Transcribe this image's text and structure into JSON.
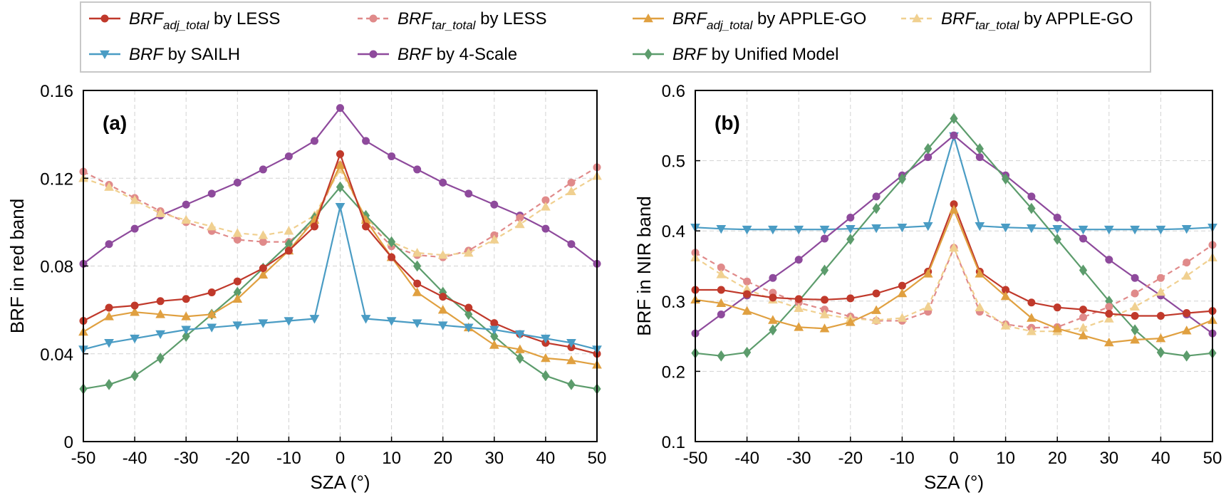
{
  "legend": [
    {
      "key": "less_adj",
      "name": "BRF",
      "sub": "adj_total",
      "suffix": " by LESS"
    },
    {
      "key": "less_tar",
      "name": "BRF",
      "sub": "tar_total",
      "suffix": " by LESS"
    },
    {
      "key": "apple_adj",
      "name": "BRF",
      "sub": "adj_total",
      "suffix": " by APPLE-GO"
    },
    {
      "key": "apple_tar",
      "name": "BRF",
      "sub": "tar_total",
      "suffix": " by APPLE-GO"
    },
    {
      "key": "sailh",
      "name": "BRF",
      "sub": "",
      "suffix": " by SAILH"
    },
    {
      "key": "fourscale",
      "name": "BRF",
      "sub": "",
      "suffix": " by 4-Scale"
    },
    {
      "key": "unified",
      "name": "BRF",
      "sub": "",
      "suffix": " by Unified Model"
    }
  ],
  "styles": {
    "less_adj": {
      "color": "#c0392b",
      "marker": "circle",
      "dash": false,
      "opacity": 1
    },
    "less_tar": {
      "color": "#e08a8a",
      "marker": "circle",
      "dash": true,
      "opacity": 1
    },
    "apple_adj": {
      "color": "#e0a040",
      "marker": "triangle",
      "dash": false,
      "opacity": 1
    },
    "apple_tar": {
      "color": "#f0d090",
      "marker": "triangle",
      "dash": true,
      "opacity": 1
    },
    "sailh": {
      "color": "#4a9cc4",
      "marker": "triangle-down",
      "dash": false,
      "opacity": 1
    },
    "fourscale": {
      "color": "#8e4a9c",
      "marker": "circle",
      "dash": false,
      "opacity": 1
    },
    "unified": {
      "color": "#5c9c6c",
      "marker": "diamond",
      "dash": false,
      "opacity": 1
    }
  },
  "chart_data": [
    {
      "type": "line",
      "panel_label": "(a)",
      "xlabel": "SZA (°)",
      "ylabel": "BRF in red band",
      "xlim": [
        -50,
        50
      ],
      "ylim": [
        0,
        0.16
      ],
      "xticks": [
        -50,
        -40,
        -30,
        -20,
        -10,
        0,
        10,
        20,
        30,
        40,
        50
      ],
      "yticks": [
        0,
        0.04,
        0.08,
        0.12,
        0.16
      ],
      "ytick_labels": [
        "0",
        "0.04",
        "0.08",
        "0.12",
        "0.16"
      ],
      "grid": true,
      "x": [
        -50,
        -45,
        -40,
        -35,
        -30,
        -25,
        -20,
        -15,
        -10,
        -5,
        0,
        5,
        10,
        15,
        20,
        25,
        30,
        35,
        40,
        45,
        50
      ],
      "series": [
        {
          "key": "fourscale",
          "values": [
            0.081,
            0.09,
            0.097,
            0.103,
            0.108,
            0.113,
            0.118,
            0.124,
            0.13,
            0.137,
            0.152,
            0.137,
            0.13,
            0.124,
            0.118,
            0.113,
            0.108,
            0.103,
            0.097,
            0.09,
            0.081
          ]
        },
        {
          "key": "less_tar",
          "values": [
            0.123,
            0.117,
            0.111,
            0.105,
            0.1,
            0.096,
            0.092,
            0.091,
            0.091,
            0.1,
            0.126,
            0.101,
            0.089,
            0.085,
            0.084,
            0.087,
            0.094,
            0.102,
            0.11,
            0.118,
            0.125
          ]
        },
        {
          "key": "apple_tar",
          "values": [
            0.12,
            0.116,
            0.11,
            0.104,
            0.101,
            0.098,
            0.095,
            0.094,
            0.096,
            0.103,
            0.124,
            0.102,
            0.091,
            0.086,
            0.085,
            0.086,
            0.092,
            0.099,
            0.107,
            0.114,
            0.121
          ]
        },
        {
          "key": "unified",
          "values": [
            0.024,
            0.026,
            0.03,
            0.038,
            0.048,
            0.058,
            0.068,
            0.079,
            0.09,
            0.102,
            0.116,
            0.103,
            0.091,
            0.08,
            0.068,
            0.058,
            0.048,
            0.038,
            0.03,
            0.026,
            0.024
          ]
        },
        {
          "key": "apple_adj",
          "values": [
            0.05,
            0.057,
            0.059,
            0.058,
            0.057,
            0.058,
            0.065,
            0.076,
            0.087,
            0.101,
            0.126,
            0.101,
            0.084,
            0.068,
            0.06,
            0.052,
            0.044,
            0.042,
            0.038,
            0.037,
            0.035
          ]
        },
        {
          "key": "less_adj",
          "values": [
            0.055,
            0.061,
            0.062,
            0.064,
            0.065,
            0.068,
            0.073,
            0.079,
            0.087,
            0.098,
            0.131,
            0.098,
            0.084,
            0.072,
            0.066,
            0.061,
            0.054,
            0.049,
            0.045,
            0.043,
            0.04
          ]
        },
        {
          "key": "sailh",
          "values": [
            0.042,
            0.045,
            0.047,
            0.049,
            0.051,
            0.052,
            0.053,
            0.054,
            0.055,
            0.056,
            0.107,
            0.056,
            0.055,
            0.054,
            0.053,
            0.052,
            0.051,
            0.049,
            0.047,
            0.045,
            0.042
          ]
        }
      ]
    },
    {
      "type": "line",
      "panel_label": "(b)",
      "xlabel": "SZA (°)",
      "ylabel": "BRF in NIR band",
      "xlim": [
        -50,
        50
      ],
      "ylim": [
        0.1,
        0.6
      ],
      "xticks": [
        -50,
        -40,
        -30,
        -20,
        -10,
        0,
        10,
        20,
        30,
        40,
        50
      ],
      "yticks": [
        0.1,
        0.2,
        0.3,
        0.4,
        0.5,
        0.6
      ],
      "ytick_labels": [
        "0.1",
        "0.2",
        "0.3",
        "0.4",
        "0.5",
        "0.6"
      ],
      "grid": true,
      "x": [
        -50,
        -45,
        -40,
        -35,
        -30,
        -25,
        -20,
        -15,
        -10,
        -5,
        0,
        5,
        10,
        15,
        20,
        25,
        30,
        35,
        40,
        45,
        50
      ],
      "series": [
        {
          "key": "sailh",
          "values": [
            0.405,
            0.403,
            0.402,
            0.402,
            0.402,
            0.402,
            0.403,
            0.404,
            0.405,
            0.407,
            0.535,
            0.407,
            0.405,
            0.404,
            0.403,
            0.402,
            0.402,
            0.402,
            0.402,
            0.403,
            0.405
          ]
        },
        {
          "key": "fourscale",
          "values": [
            0.254,
            0.281,
            0.308,
            0.333,
            0.359,
            0.389,
            0.419,
            0.449,
            0.479,
            0.505,
            0.536,
            0.505,
            0.479,
            0.449,
            0.419,
            0.389,
            0.359,
            0.333,
            0.308,
            0.281,
            0.254
          ]
        },
        {
          "key": "unified",
          "values": [
            0.226,
            0.222,
            0.227,
            0.259,
            0.3,
            0.344,
            0.388,
            0.432,
            0.474,
            0.517,
            0.56,
            0.517,
            0.474,
            0.432,
            0.388,
            0.344,
            0.3,
            0.259,
            0.227,
            0.222,
            0.226
          ]
        },
        {
          "key": "less_tar",
          "values": [
            0.369,
            0.348,
            0.328,
            0.312,
            0.298,
            0.288,
            0.278,
            0.272,
            0.272,
            0.285,
            0.376,
            0.285,
            0.267,
            0.262,
            0.263,
            0.277,
            0.292,
            0.311,
            0.333,
            0.355,
            0.38
          ]
        },
        {
          "key": "apple_tar",
          "values": [
            0.362,
            0.338,
            0.317,
            0.302,
            0.29,
            0.281,
            0.275,
            0.273,
            0.276,
            0.292,
            0.376,
            0.291,
            0.265,
            0.257,
            0.257,
            0.262,
            0.275,
            0.292,
            0.313,
            0.336,
            0.362
          ]
        },
        {
          "key": "less_adj",
          "values": [
            0.316,
            0.316,
            0.31,
            0.305,
            0.303,
            0.302,
            0.304,
            0.311,
            0.322,
            0.342,
            0.438,
            0.342,
            0.316,
            0.298,
            0.291,
            0.288,
            0.282,
            0.279,
            0.279,
            0.283,
            0.286
          ]
        },
        {
          "key": "apple_adj",
          "values": [
            0.302,
            0.297,
            0.286,
            0.273,
            0.263,
            0.261,
            0.27,
            0.287,
            0.311,
            0.339,
            0.43,
            0.339,
            0.307,
            0.276,
            0.261,
            0.251,
            0.241,
            0.245,
            0.247,
            0.258,
            0.273
          ]
        }
      ]
    }
  ]
}
